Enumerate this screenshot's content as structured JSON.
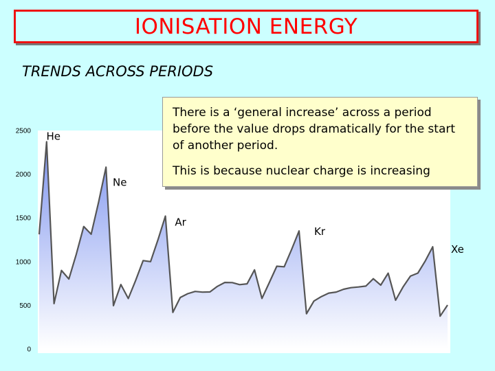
{
  "slide": {
    "title": "IONISATION ENERGY",
    "subtitle": "TRENDS ACROSS PERIODS",
    "note": {
      "line1": "There is a ‘general increase’ across a period before the value drops dramatically for the start of another period.",
      "line2": "This is because nuclear charge is increasing"
    },
    "colors": {
      "background": "#ccffff",
      "title_text": "#ff0000",
      "title_border": "#ee1111",
      "note_fill": "#ffffcc",
      "area_top": "#7f95ef",
      "area_bottom": "#ffffff",
      "line": "#555555"
    }
  },
  "chart_data": {
    "type": "area",
    "title": "",
    "xlabel": "",
    "ylabel": "",
    "ylim": [
      0,
      2500
    ],
    "yticks": [
      0,
      500,
      1000,
      1500,
      2000,
      2500
    ],
    "grid": false,
    "x": [
      1,
      2,
      3,
      4,
      5,
      6,
      7,
      8,
      9,
      10,
      11,
      12,
      13,
      14,
      15,
      16,
      17,
      18,
      19,
      20,
      21,
      22,
      23,
      24,
      25,
      26,
      27,
      28,
      29,
      30,
      31,
      32,
      33,
      34,
      35,
      36,
      37,
      38,
      39,
      40,
      41,
      42,
      43,
      44,
      45,
      46,
      47,
      48,
      49,
      50,
      51,
      52,
      53,
      54,
      55,
      56
    ],
    "series": [
      {
        "values": [
          1312,
          2372,
          520,
          899,
          801,
          1086,
          1402,
          1314,
          1681,
          2081,
          496,
          738,
          578,
          787,
          1012,
          1000,
          1251,
          1521,
          419,
          590,
          633,
          659,
          651,
          653,
          717,
          762,
          760,
          737,
          746,
          906,
          579,
          762,
          947,
          941,
          1140,
          1351,
          403,
          549,
          600,
          640,
          652,
          684,
          702,
          710,
          720,
          804,
          731,
          868,
          558,
          709,
          834,
          869,
          1008,
          1170,
          376,
          503
        ]
      }
    ],
    "annotations": [
      {
        "label": "He",
        "x": 2,
        "y": 2372
      },
      {
        "label": "Ne",
        "x": 10,
        "y": 2081
      },
      {
        "label": "Ar",
        "x": 18,
        "y": 1521
      },
      {
        "label": "Kr",
        "x": 36,
        "y": 1351
      },
      {
        "label": "Xe",
        "x": 54,
        "y": 1170
      }
    ]
  }
}
